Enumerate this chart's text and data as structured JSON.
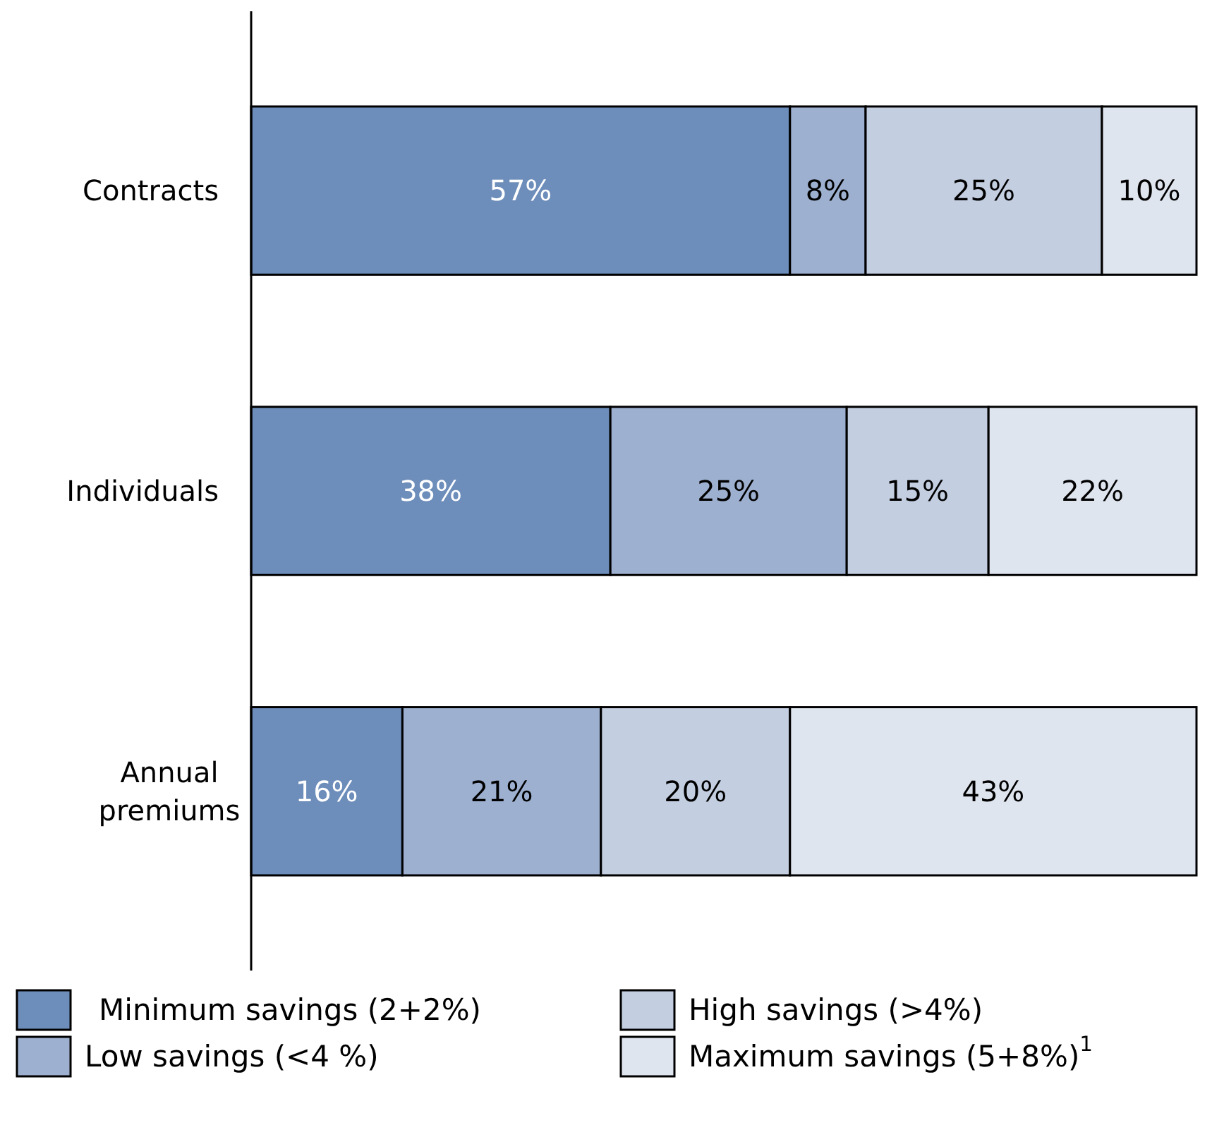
{
  "chart_data": {
    "type": "bar",
    "orientation": "horizontal",
    "stacked": true,
    "categories": [
      "Contracts",
      "Individuals",
      "Annual premiums"
    ],
    "series": [
      {
        "name": "Minimum savings (2+2%)",
        "color": "#6d8dba",
        "values": [
          57,
          38,
          16
        ],
        "value_labels": [
          "57%",
          "38%",
          "16%"
        ]
      },
      {
        "name": "Low savings (<4 %)",
        "color": "#9db0cf",
        "values": [
          8,
          25,
          21
        ],
        "value_labels": [
          "8%",
          "25%",
          "21%"
        ]
      },
      {
        "name": "High savings (>4%)",
        "color": "#c3cee1",
        "values": [
          25,
          15,
          20
        ],
        "value_labels": [
          "25%",
          "15%",
          "20%"
        ]
      },
      {
        "name": "Maximum savings (5+8%)$^{1}$",
        "color": "#dfe5ef",
        "values": [
          10,
          22,
          43
        ],
        "value_labels": [
          "10%",
          "22%",
          "43%"
        ]
      }
    ],
    "xlim": [
      0,
      100
    ],
    "tick_labels": "y",
    "legend": "bottom"
  }
}
